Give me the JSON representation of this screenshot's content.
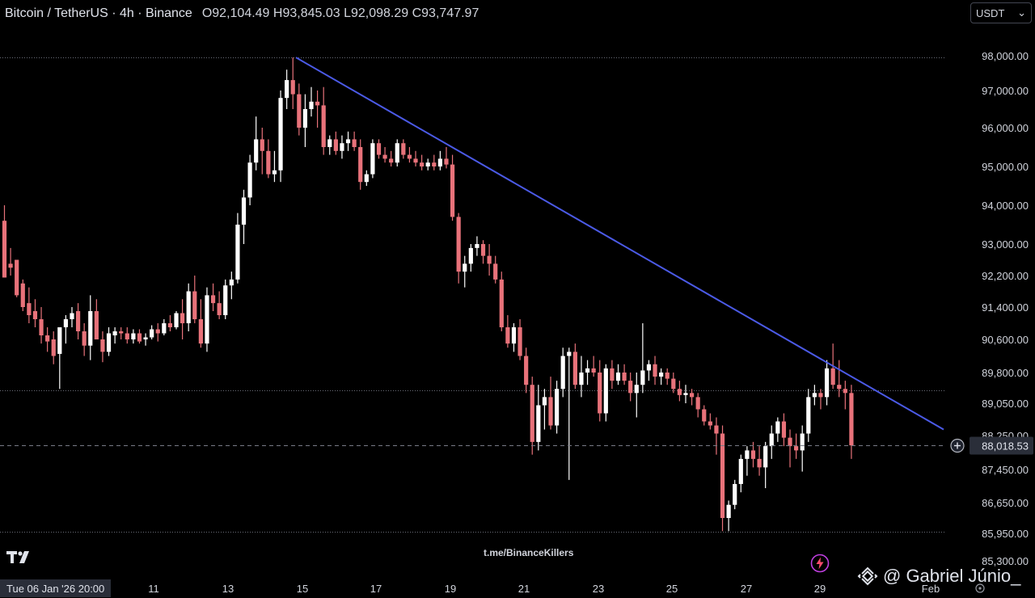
{
  "header": {
    "symbol": "Bitcoin / TetherUS · 4h · Binance",
    "ohlc": "O92,104.49 H93,845.03 L92,098.29 C93,747.97"
  },
  "currency_select": {
    "label": "USDT",
    "icon": "chevron-down-icon"
  },
  "watermark": "t.me/BinanceKillers",
  "cursor_date": "Tue 06 Jan '26  20:00",
  "author": "@ Gabriel Júnio_",
  "logos": {
    "tradingview": "tradingview-logo-icon",
    "binance": "binance-logo-icon",
    "flash": "lightning-icon"
  },
  "chart_data": {
    "type": "candlestick",
    "title": "Bitcoin / TetherUS · 4h · Binance",
    "y_ticks": [
      "98,000.00",
      "97,000.00",
      "96,000.00",
      "95,000.00",
      "94,000.00",
      "93,000.00",
      "92,200.00",
      "91,400.00",
      "90,600.00",
      "89,800.00",
      "89,050.00",
      "88,250.00",
      "87,450.00",
      "86,650.00",
      "85,950.00",
      "85,300.00"
    ],
    "x_ticks": [
      "11",
      "13",
      "15",
      "17",
      "19",
      "21",
      "23",
      "25",
      "27",
      "29",
      "Feb"
    ],
    "last_price_label": "88,018.53",
    "colors": {
      "up": "#ffffff",
      "down": "#e8727a",
      "trendline": "#4b5ae6",
      "grid": "#6a6d78"
    },
    "trendline": {
      "from": [
        "15 Jan",
        97950
      ],
      "to": [
        "31 Jan",
        88400
      ]
    },
    "reference_levels": [
      97950,
      89360,
      85990
    ],
    "candles": [
      {
        "o": 93600,
        "h": 94000,
        "l": 92150,
        "c": 92150
      },
      {
        "o": 92500,
        "h": 92900,
        "l": 92200,
        "c": 92400
      },
      {
        "o": 92600,
        "h": 92600,
        "l": 91650,
        "c": 91700
      },
      {
        "o": 92000,
        "h": 92100,
        "l": 91300,
        "c": 91400
      },
      {
        "o": 91500,
        "h": 91900,
        "l": 91000,
        "c": 91200
      },
      {
        "o": 91300,
        "h": 91600,
        "l": 90900,
        "c": 91100
      },
      {
        "o": 91100,
        "h": 91400,
        "l": 90500,
        "c": 90700
      },
      {
        "o": 90700,
        "h": 90900,
        "l": 90300,
        "c": 90550
      },
      {
        "o": 90600,
        "h": 90800,
        "l": 90000,
        "c": 90200
      },
      {
        "o": 90250,
        "h": 90900,
        "l": 89400,
        "c": 90900
      },
      {
        "o": 90900,
        "h": 91200,
        "l": 90500,
        "c": 91100
      },
      {
        "o": 91100,
        "h": 91400,
        "l": 90900,
        "c": 91250
      },
      {
        "o": 91300,
        "h": 91500,
        "l": 90600,
        "c": 90800
      },
      {
        "o": 90800,
        "h": 91000,
        "l": 90200,
        "c": 90450
      },
      {
        "o": 90450,
        "h": 91700,
        "l": 90100,
        "c": 91300
      },
      {
        "o": 91300,
        "h": 91600,
        "l": 90600,
        "c": 90600
      },
      {
        "o": 90600,
        "h": 90800,
        "l": 90050,
        "c": 90300
      },
      {
        "o": 90300,
        "h": 90900,
        "l": 90200,
        "c": 90750
      },
      {
        "o": 90700,
        "h": 90900,
        "l": 90500,
        "c": 90800
      },
      {
        "o": 90800,
        "h": 90900,
        "l": 90600,
        "c": 90750
      },
      {
        "o": 90750,
        "h": 90900,
        "l": 90500,
        "c": 90600
      },
      {
        "o": 90600,
        "h": 90850,
        "l": 90500,
        "c": 90750
      },
      {
        "o": 90750,
        "h": 90850,
        "l": 90500,
        "c": 90550
      },
      {
        "o": 90600,
        "h": 90750,
        "l": 90450,
        "c": 90650
      },
      {
        "o": 90650,
        "h": 90950,
        "l": 90600,
        "c": 90850
      },
      {
        "o": 90850,
        "h": 91000,
        "l": 90550,
        "c": 90750
      },
      {
        "o": 90750,
        "h": 91100,
        "l": 90700,
        "c": 91000
      },
      {
        "o": 91000,
        "h": 91200,
        "l": 90800,
        "c": 90900
      },
      {
        "o": 90900,
        "h": 91300,
        "l": 90850,
        "c": 91250
      },
      {
        "o": 91250,
        "h": 91600,
        "l": 90600,
        "c": 91000
      },
      {
        "o": 91000,
        "h": 92000,
        "l": 90800,
        "c": 91800
      },
      {
        "o": 91800,
        "h": 92200,
        "l": 91000,
        "c": 91100
      },
      {
        "o": 91100,
        "h": 91600,
        "l": 90400,
        "c": 90500
      },
      {
        "o": 90500,
        "h": 91900,
        "l": 90300,
        "c": 91700
      },
      {
        "o": 91700,
        "h": 92000,
        "l": 91300,
        "c": 91500
      },
      {
        "o": 91500,
        "h": 91800,
        "l": 91100,
        "c": 91200
      },
      {
        "o": 91200,
        "h": 92100,
        "l": 91100,
        "c": 91950
      },
      {
        "o": 91950,
        "h": 92300,
        "l": 91600,
        "c": 92100
      },
      {
        "o": 92100,
        "h": 93800,
        "l": 92000,
        "c": 93500
      },
      {
        "o": 93500,
        "h": 94400,
        "l": 93000,
        "c": 94200
      },
      {
        "o": 94200,
        "h": 95300,
        "l": 94000,
        "c": 95100
      },
      {
        "o": 95100,
        "h": 96300,
        "l": 94900,
        "c": 95700
      },
      {
        "o": 95700,
        "h": 96000,
        "l": 94800,
        "c": 95400
      },
      {
        "o": 95400,
        "h": 95700,
        "l": 94700,
        "c": 94800
      },
      {
        "o": 94800,
        "h": 95400,
        "l": 94600,
        "c": 94900
      },
      {
        "o": 94900,
        "h": 97000,
        "l": 94600,
        "c": 96800
      },
      {
        "o": 96800,
        "h": 97600,
        "l": 96500,
        "c": 97300
      },
      {
        "o": 97300,
        "h": 97950,
        "l": 96500,
        "c": 96900
      },
      {
        "o": 96900,
        "h": 97200,
        "l": 95800,
        "c": 96000
      },
      {
        "o": 96000,
        "h": 96900,
        "l": 95500,
        "c": 96500
      },
      {
        "o": 96500,
        "h": 97100,
        "l": 96300,
        "c": 96700
      },
      {
        "o": 96700,
        "h": 97000,
        "l": 96000,
        "c": 96600
      },
      {
        "o": 96600,
        "h": 97100,
        "l": 95300,
        "c": 95500
      },
      {
        "o": 95500,
        "h": 95800,
        "l": 95300,
        "c": 95700
      },
      {
        "o": 95700,
        "h": 95900,
        "l": 95300,
        "c": 95400
      },
      {
        "o": 95400,
        "h": 95800,
        "l": 95200,
        "c": 95600
      },
      {
        "o": 95600,
        "h": 95900,
        "l": 95400,
        "c": 95700
      },
      {
        "o": 95700,
        "h": 95900,
        "l": 95400,
        "c": 95500
      },
      {
        "o": 95500,
        "h": 95700,
        "l": 94400,
        "c": 94600
      },
      {
        "o": 94600,
        "h": 94900,
        "l": 94500,
        "c": 94800
      },
      {
        "o": 94800,
        "h": 95700,
        "l": 94700,
        "c": 95600
      },
      {
        "o": 95600,
        "h": 95700,
        "l": 95200,
        "c": 95300
      },
      {
        "o": 95300,
        "h": 95500,
        "l": 95100,
        "c": 95200
      },
      {
        "o": 95200,
        "h": 95400,
        "l": 95000,
        "c": 95100
      },
      {
        "o": 95100,
        "h": 95700,
        "l": 95000,
        "c": 95600
      },
      {
        "o": 95600,
        "h": 95700,
        "l": 95200,
        "c": 95300
      },
      {
        "o": 95300,
        "h": 95500,
        "l": 95100,
        "c": 95200
      },
      {
        "o": 95200,
        "h": 95400,
        "l": 95000,
        "c": 95100
      },
      {
        "o": 95100,
        "h": 95300,
        "l": 94900,
        "c": 95000
      },
      {
        "o": 95000,
        "h": 95200,
        "l": 94900,
        "c": 95100
      },
      {
        "o": 95100,
        "h": 95300,
        "l": 94900,
        "c": 95000
      },
      {
        "o": 95000,
        "h": 95400,
        "l": 94900,
        "c": 95200
      },
      {
        "o": 95200,
        "h": 95500,
        "l": 94950,
        "c": 95050
      },
      {
        "o": 95050,
        "h": 95300,
        "l": 93600,
        "c": 93700
      },
      {
        "o": 93700,
        "h": 93800,
        "l": 92000,
        "c": 92300
      },
      {
        "o": 92300,
        "h": 92700,
        "l": 91900,
        "c": 92500
      },
      {
        "o": 92500,
        "h": 93000,
        "l": 92300,
        "c": 92900
      },
      {
        "o": 92900,
        "h": 93200,
        "l": 92700,
        "c": 93000
      },
      {
        "o": 93000,
        "h": 93100,
        "l": 92500,
        "c": 92700
      },
      {
        "o": 92700,
        "h": 93000,
        "l": 92200,
        "c": 92500
      },
      {
        "o": 92500,
        "h": 92700,
        "l": 92000,
        "c": 92100
      },
      {
        "o": 92100,
        "h": 92300,
        "l": 90800,
        "c": 90900
      },
      {
        "o": 90900,
        "h": 91200,
        "l": 90400,
        "c": 90500
      },
      {
        "o": 90500,
        "h": 91000,
        "l": 90300,
        "c": 90900
      },
      {
        "o": 90900,
        "h": 91100,
        "l": 90100,
        "c": 90200
      },
      {
        "o": 90200,
        "h": 90400,
        "l": 89300,
        "c": 89500
      },
      {
        "o": 89500,
        "h": 89700,
        "l": 87800,
        "c": 88100
      },
      {
        "o": 88100,
        "h": 89500,
        "l": 87900,
        "c": 89000
      },
      {
        "o": 89000,
        "h": 89400,
        "l": 88400,
        "c": 89200
      },
      {
        "o": 89200,
        "h": 89700,
        "l": 88400,
        "c": 88500
      },
      {
        "o": 88500,
        "h": 89600,
        "l": 88300,
        "c": 89400
      },
      {
        "o": 89400,
        "h": 90400,
        "l": 89200,
        "c": 90200
      },
      {
        "o": 90200,
        "h": 90400,
        "l": 87200,
        "c": 90300
      },
      {
        "o": 90300,
        "h": 90500,
        "l": 89400,
        "c": 89500
      },
      {
        "o": 89500,
        "h": 90200,
        "l": 89200,
        "c": 89800
      },
      {
        "o": 89800,
        "h": 90100,
        "l": 89500,
        "c": 89900
      },
      {
        "o": 89900,
        "h": 90200,
        "l": 89700,
        "c": 89800
      },
      {
        "o": 89800,
        "h": 90100,
        "l": 88600,
        "c": 88800
      },
      {
        "o": 88800,
        "h": 90000,
        "l": 88600,
        "c": 89900
      },
      {
        "o": 89900,
        "h": 90100,
        "l": 89400,
        "c": 89600
      },
      {
        "o": 89600,
        "h": 90000,
        "l": 89500,
        "c": 89800
      },
      {
        "o": 89800,
        "h": 90000,
        "l": 89500,
        "c": 89600
      },
      {
        "o": 89600,
        "h": 89800,
        "l": 89100,
        "c": 89300
      },
      {
        "o": 89300,
        "h": 89800,
        "l": 88700,
        "c": 89500
      },
      {
        "o": 89500,
        "h": 91000,
        "l": 89300,
        "c": 89850
      },
      {
        "o": 89850,
        "h": 90100,
        "l": 89600,
        "c": 90000
      },
      {
        "o": 90000,
        "h": 90200,
        "l": 89500,
        "c": 89700
      },
      {
        "o": 89700,
        "h": 89900,
        "l": 89500,
        "c": 89800
      },
      {
        "o": 89800,
        "h": 89900,
        "l": 89500,
        "c": 89650
      },
      {
        "o": 89650,
        "h": 89800,
        "l": 89300,
        "c": 89400
      },
      {
        "o": 89400,
        "h": 89600,
        "l": 89100,
        "c": 89250
      },
      {
        "o": 89250,
        "h": 89500,
        "l": 89050,
        "c": 89300
      },
      {
        "o": 89300,
        "h": 89400,
        "l": 89000,
        "c": 89200
      },
      {
        "o": 89200,
        "h": 89300,
        "l": 88700,
        "c": 88900
      },
      {
        "o": 88900,
        "h": 89000,
        "l": 88500,
        "c": 88600
      },
      {
        "o": 88600,
        "h": 88800,
        "l": 88400,
        "c": 88500
      },
      {
        "o": 88500,
        "h": 88700,
        "l": 87800,
        "c": 88300
      },
      {
        "o": 88300,
        "h": 88500,
        "l": 86000,
        "c": 86300
      },
      {
        "o": 86300,
        "h": 86700,
        "l": 86000,
        "c": 86600
      },
      {
        "o": 86600,
        "h": 87200,
        "l": 86500,
        "c": 87100
      },
      {
        "o": 87100,
        "h": 87800,
        "l": 86900,
        "c": 87700
      },
      {
        "o": 87700,
        "h": 88000,
        "l": 87300,
        "c": 87900
      },
      {
        "o": 87900,
        "h": 88100,
        "l": 87500,
        "c": 87700
      },
      {
        "o": 87700,
        "h": 88000,
        "l": 87300,
        "c": 87500
      },
      {
        "o": 87500,
        "h": 88100,
        "l": 87000,
        "c": 88000
      },
      {
        "o": 88000,
        "h": 88500,
        "l": 87700,
        "c": 88300
      },
      {
        "o": 88300,
        "h": 88700,
        "l": 88100,
        "c": 88600
      },
      {
        "o": 88600,
        "h": 88800,
        "l": 88000,
        "c": 88200
      },
      {
        "o": 88200,
        "h": 88400,
        "l": 87500,
        "c": 88000
      },
      {
        "o": 88000,
        "h": 88300,
        "l": 87700,
        "c": 87900
      },
      {
        "o": 87900,
        "h": 88500,
        "l": 87400,
        "c": 88300
      },
      {
        "o": 88300,
        "h": 89400,
        "l": 88100,
        "c": 89200
      },
      {
        "o": 89200,
        "h": 89500,
        "l": 89000,
        "c": 89300
      },
      {
        "o": 89300,
        "h": 89400,
        "l": 88900,
        "c": 89200
      },
      {
        "o": 89200,
        "h": 90100,
        "l": 89000,
        "c": 89900
      },
      {
        "o": 89900,
        "h": 90500,
        "l": 89400,
        "c": 89500
      },
      {
        "o": 89500,
        "h": 90100,
        "l": 89200,
        "c": 89400
      },
      {
        "o": 89400,
        "h": 89600,
        "l": 88900,
        "c": 89300
      },
      {
        "o": 89300,
        "h": 89500,
        "l": 87700,
        "c": 88018.53
      }
    ]
  }
}
